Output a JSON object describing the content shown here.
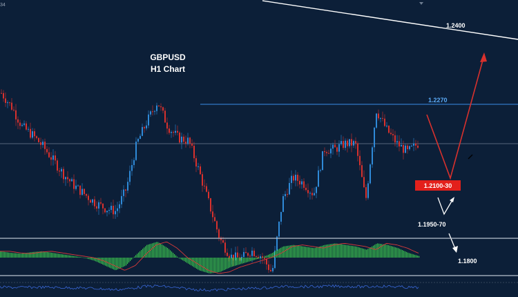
{
  "chart_data": {
    "type": "candlestick",
    "title": "GBPUSD",
    "subtitle": "H1 Chart",
    "corner_label": "34",
    "levels": {
      "resistance": "1.2270",
      "trendline_top": "1.2400",
      "support_zone": "1.2100-30",
      "lower_zone": "1.1950-70",
      "target_low": "1.1800"
    },
    "price_path": [
      1.229,
      1.2265,
      1.223,
      1.2215,
      1.2195,
      1.217,
      1.2145,
      1.2125,
      1.211,
      1.2095,
      1.2085,
      1.208,
      1.212,
      1.22,
      1.224,
      1.2275,
      1.223,
      1.221,
      1.2205,
      1.215,
      1.209,
      1.203,
      1.2,
      1.1995,
      1.201,
      1.2,
      1.197,
      1.21,
      1.214,
      1.213,
      1.211,
      1.219,
      1.219,
      1.22,
      1.22,
      1.21,
      1.226,
      1.2225,
      1.22,
      1.2185,
      1.22
    ],
    "macd_path": [
      0.4,
      0.3,
      0.25,
      0.35,
      0.4,
      0.3,
      0.2,
      0.1,
      0.0,
      -0.2,
      -0.5,
      -0.8,
      -0.5,
      0.2,
      0.8,
      1.0,
      0.6,
      0.0,
      -0.4,
      -0.8,
      -1.0,
      -0.9,
      -0.6,
      -0.4,
      -0.2,
      0.0,
      0.3,
      0.7,
      0.8,
      0.7,
      0.6,
      0.8,
      0.9,
      0.8,
      0.7,
      0.5,
      0.9,
      0.8,
      0.6,
      0.3,
      0.1
    ],
    "colors": {
      "background": "#0c1f38",
      "bull": "#2f8ad8",
      "bear": "#d9312d",
      "macd": "#3bc24f",
      "signal": "#d93a3a",
      "resistance": "#3a8ee8",
      "support_box": "#e3201b",
      "projection": "#d9312d"
    }
  }
}
